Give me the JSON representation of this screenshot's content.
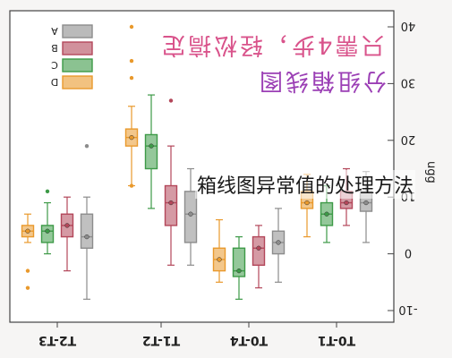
{
  "watermark": {
    "line1": "只需4步，轻松搞定",
    "line2": "分组箱线图"
  },
  "overlay_caption": "箱线图异常值的处理方法",
  "chart_data": {
    "type": "box",
    "orientation": "rotated-180",
    "xlabel": "",
    "ylabel": "ugg",
    "ylim": [
      -11,
      41
    ],
    "yticks": [
      -10,
      0,
      10,
      20,
      30,
      40
    ],
    "ytick_labels": [
      "-10",
      "0",
      "10",
      "20",
      "30",
      "40"
    ],
    "categories": [
      "T0-T1",
      "T0-T4",
      "T1-T2",
      "T2-T3"
    ],
    "legend_position": "bottom-left (as displayed)",
    "series": [
      {
        "name": "A",
        "color": "#8c8c8c",
        "boxes": [
          {
            "category": "T0-T1",
            "min": 2,
            "q1": 7.5,
            "median": 9,
            "q3": 11,
            "max": 14.5,
            "mean": 9,
            "outliers": []
          },
          {
            "category": "T0-T4",
            "min": -5,
            "q1": 0,
            "median": 2,
            "q3": 4,
            "max": 8,
            "mean": 2,
            "outliers": []
          },
          {
            "category": "T1-T2",
            "min": -2,
            "q1": 2,
            "median": 7,
            "q3": 11,
            "max": 15,
            "mean": 7,
            "outliers": []
          },
          {
            "category": "T2-T3",
            "min": -8,
            "q1": 1,
            "median": 3,
            "q3": 7,
            "max": 10,
            "mean": 3,
            "outliers": [
              19
            ]
          }
        ]
      },
      {
        "name": "B",
        "color": "#b3475a",
        "boxes": [
          {
            "category": "T0-T1",
            "min": 5,
            "q1": 8,
            "median": 9,
            "q3": 11,
            "max": 15,
            "mean": 9,
            "outliers": []
          },
          {
            "category": "T0-T4",
            "min": -6,
            "q1": -2,
            "median": 1,
            "q3": 3,
            "max": 5,
            "mean": 1,
            "outliers": []
          },
          {
            "category": "T1-T2",
            "min": -2,
            "q1": 5,
            "median": 9,
            "q3": 12,
            "max": 19,
            "mean": 9,
            "outliers": [
              27
            ]
          },
          {
            "category": "T2-T3",
            "min": -3,
            "q1": 3,
            "median": 5,
            "q3": 7,
            "max": 10,
            "mean": 5,
            "outliers": []
          }
        ]
      },
      {
        "name": "C",
        "color": "#3d9a47",
        "boxes": [
          {
            "category": "T0-T1",
            "min": 2,
            "q1": 5,
            "median": 7,
            "q3": 9,
            "max": 12,
            "mean": 7,
            "outliers": []
          },
          {
            "category": "T0-T4",
            "min": -8,
            "q1": -4,
            "median": -3,
            "q3": 1,
            "max": 3,
            "mean": -3,
            "outliers": []
          },
          {
            "category": "T1-T2",
            "min": 8,
            "q1": 15,
            "median": 19,
            "q3": 21,
            "max": 28,
            "mean": 19,
            "outliers": []
          },
          {
            "category": "T2-T3",
            "min": 0,
            "q1": 2,
            "median": 4,
            "q3": 5,
            "max": 9,
            "mean": 4,
            "outliers": [
              11
            ]
          }
        ]
      },
      {
        "name": "D",
        "color": "#e9992c",
        "boxes": [
          {
            "category": "T0-T1",
            "min": 3,
            "q1": 8,
            "median": 9,
            "q3": 11,
            "max": 14,
            "mean": 9,
            "outliers": []
          },
          {
            "category": "T0-T4",
            "min": -5,
            "q1": -3,
            "median": -1,
            "q3": 1,
            "max": 6,
            "mean": -1,
            "outliers": []
          },
          {
            "category": "T1-T2",
            "min": 12,
            "q1": 19,
            "median": 20.5,
            "q3": 22,
            "max": 26,
            "mean": 20.5,
            "outliers": [
              12,
              31,
              34,
              40
            ]
          },
          {
            "category": "T2-T3",
            "min": 2,
            "q1": 3,
            "median": 4,
            "q3": 5,
            "max": 7,
            "mean": 4,
            "outliers": [
              -3,
              -6
            ]
          }
        ]
      }
    ]
  }
}
